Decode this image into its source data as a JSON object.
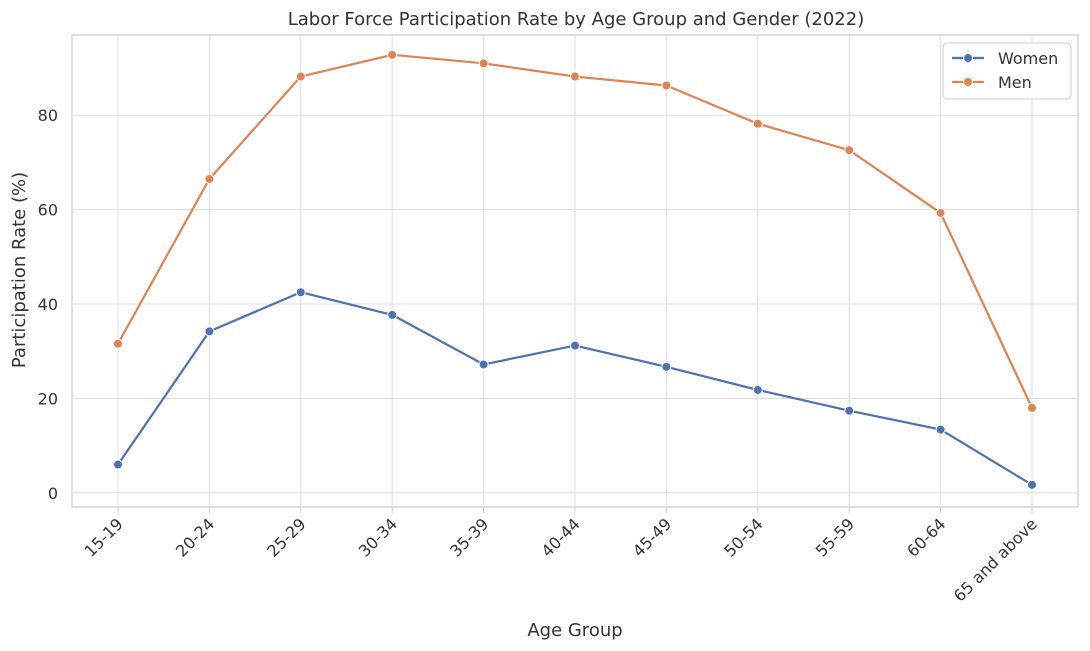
{
  "chart_data": {
    "type": "line",
    "title": "Labor Force Participation Rate by Age Group and Gender (2022)",
    "xlabel": "Age Group",
    "ylabel": "Participation Rate (%)",
    "categories": [
      "15-19",
      "20-24",
      "25-29",
      "30-34",
      "35-39",
      "40-44",
      "45-49",
      "50-54",
      "55-59",
      "60-64",
      "65 and above"
    ],
    "yticks": [
      0,
      20,
      40,
      60,
      80
    ],
    "ylim": [
      -3,
      97
    ],
    "grid": true,
    "legend_position": "top-right",
    "series": [
      {
        "name": "Women",
        "color": "#4c72b0",
        "values": [
          6.0,
          34.2,
          42.5,
          37.7,
          27.2,
          31.2,
          26.7,
          21.8,
          17.4,
          13.4,
          1.7
        ]
      },
      {
        "name": "Men",
        "color": "#dd8452",
        "values": [
          31.6,
          66.5,
          88.2,
          92.8,
          91.0,
          88.2,
          86.3,
          78.2,
          72.6,
          59.3,
          18.0
        ]
      }
    ]
  }
}
